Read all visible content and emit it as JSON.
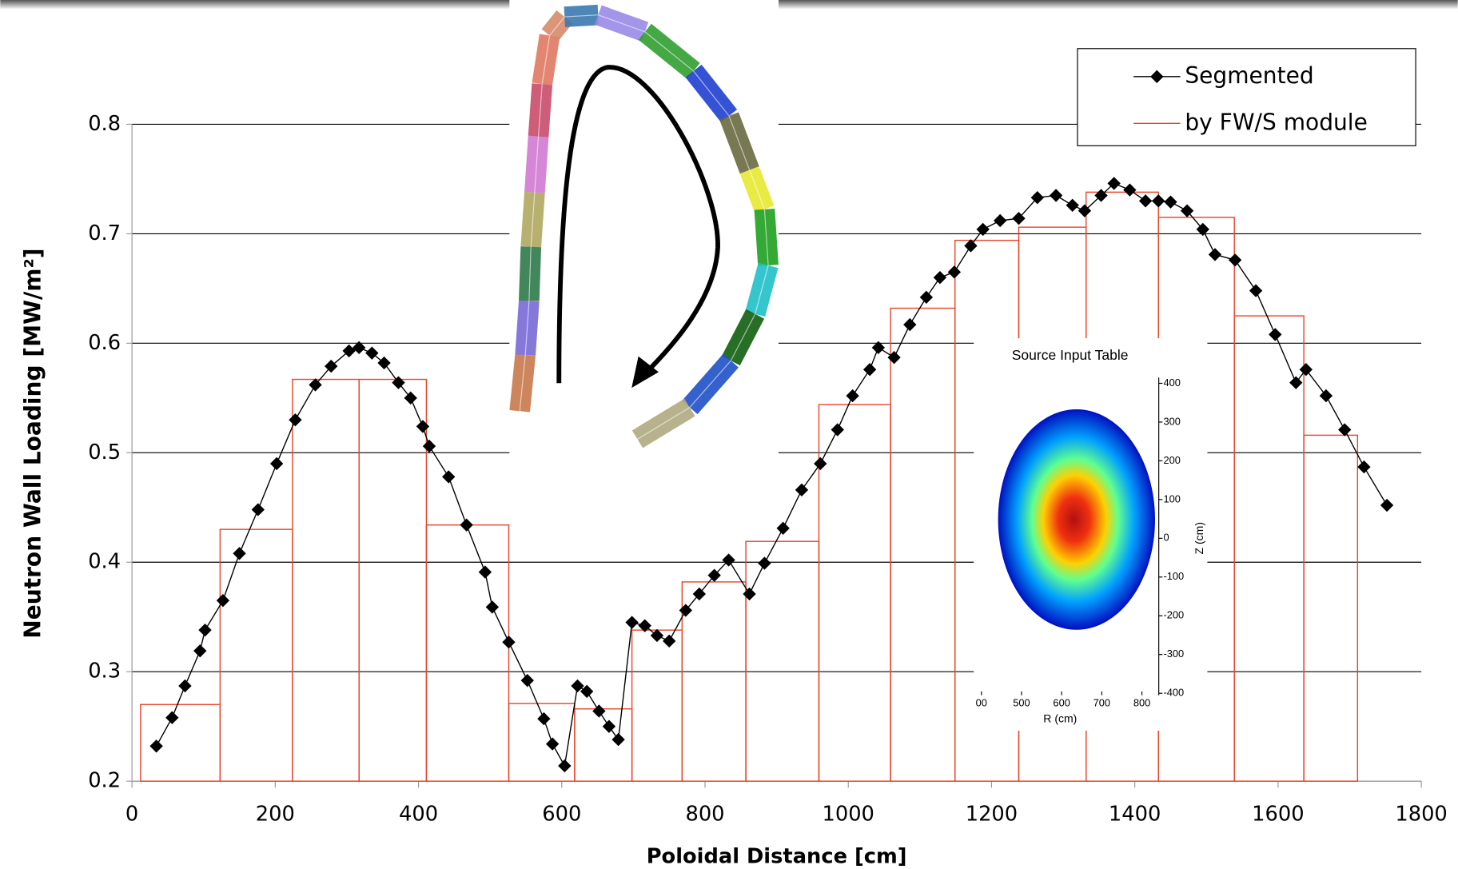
{
  "chart_data": [
    {
      "type": "line",
      "xlabel": "Poloidal Distance [cm]",
      "ylabel": "Neutron Wall Loading [MW/m²]",
      "xlim": [
        0,
        1800
      ],
      "xticks": [
        0,
        200,
        400,
        600,
        800,
        1000,
        1200,
        1400,
        1600,
        1800
      ],
      "ylim": [
        0.2,
        0.8
      ],
      "yticks": [
        0.2,
        0.3,
        0.4,
        0.5,
        0.6,
        0.7,
        0.8
      ],
      "grid": true,
      "legend": "upper right",
      "series": [
        {
          "name": "Segmented",
          "color": "#000000",
          "marker": "diamond",
          "x": [
            34,
            56,
            74,
            95,
            102,
            127,
            150,
            176,
            202,
            228,
            256,
            278,
            303,
            317,
            335,
            352,
            372,
            389,
            406,
            415,
            442,
            467,
            493,
            503,
            526,
            552,
            575,
            587,
            604,
            622,
            635,
            652,
            666,
            679,
            698,
            716,
            733,
            750,
            773,
            792,
            813,
            833,
            862,
            883,
            909,
            935,
            961,
            985,
            1006,
            1030,
            1042,
            1064,
            1086,
            1109,
            1128,
            1148,
            1171,
            1188,
            1212,
            1238,
            1264,
            1290,
            1313,
            1330,
            1353,
            1371,
            1393,
            1415,
            1433,
            1450,
            1473,
            1495,
            1512,
            1540,
            1569,
            1596,
            1625,
            1639,
            1667,
            1693,
            1720,
            1752
          ],
          "values": [
            0.232,
            0.258,
            0.287,
            0.319,
            0.338,
            0.365,
            0.408,
            0.448,
            0.49,
            0.53,
            0.562,
            0.579,
            0.593,
            0.596,
            0.591,
            0.582,
            0.564,
            0.55,
            0.524,
            0.506,
            0.478,
            0.434,
            0.391,
            0.359,
            0.327,
            0.292,
            0.257,
            0.234,
            0.214,
            0.287,
            0.282,
            0.264,
            0.25,
            0.238,
            0.345,
            0.342,
            0.333,
            0.328,
            0.356,
            0.371,
            0.388,
            0.402,
            0.371,
            0.399,
            0.431,
            0.466,
            0.49,
            0.521,
            0.552,
            0.576,
            0.596,
            0.587,
            0.617,
            0.642,
            0.66,
            0.665,
            0.689,
            0.704,
            0.712,
            0.714,
            0.733,
            0.735,
            0.726,
            0.721,
            0.735,
            0.746,
            0.74,
            0.73,
            0.73,
            0.729,
            0.721,
            0.704,
            0.681,
            0.676,
            0.648,
            0.608,
            0.564,
            0.576,
            0.552,
            0.521,
            0.487,
            0.452
          ]
        },
        {
          "name": "by FW/S module",
          "color": "#e8442a",
          "style": "step",
          "bins": [
            12,
            123,
            224,
            317,
            411,
            526,
            618,
            698,
            768,
            857,
            959,
            1059,
            1149,
            1238,
            1332,
            1433,
            1539,
            1636,
            1711
          ],
          "values": [
            0.27,
            0.43,
            0.567,
            0.567,
            0.434,
            0.271,
            0.266,
            0.338,
            0.382,
            0.419,
            0.544,
            0.632,
            0.694,
            0.706,
            0.738,
            0.715,
            0.625,
            0.516
          ]
        }
      ]
    },
    {
      "type": "heatmap",
      "title": "Source Input Table",
      "xlabel": "R (cm)",
      "ylabel": "Z (cm)",
      "xlim": [
        388,
        842
      ],
      "xticks": [
        {
          "value": 400,
          "label": "00"
        },
        500,
        600,
        700,
        800
      ],
      "ylim": [
        -405,
        415
      ],
      "yticks": [
        400,
        300,
        200,
        100,
        0,
        -100,
        -200,
        -300,
        -400
      ]
    }
  ]
}
